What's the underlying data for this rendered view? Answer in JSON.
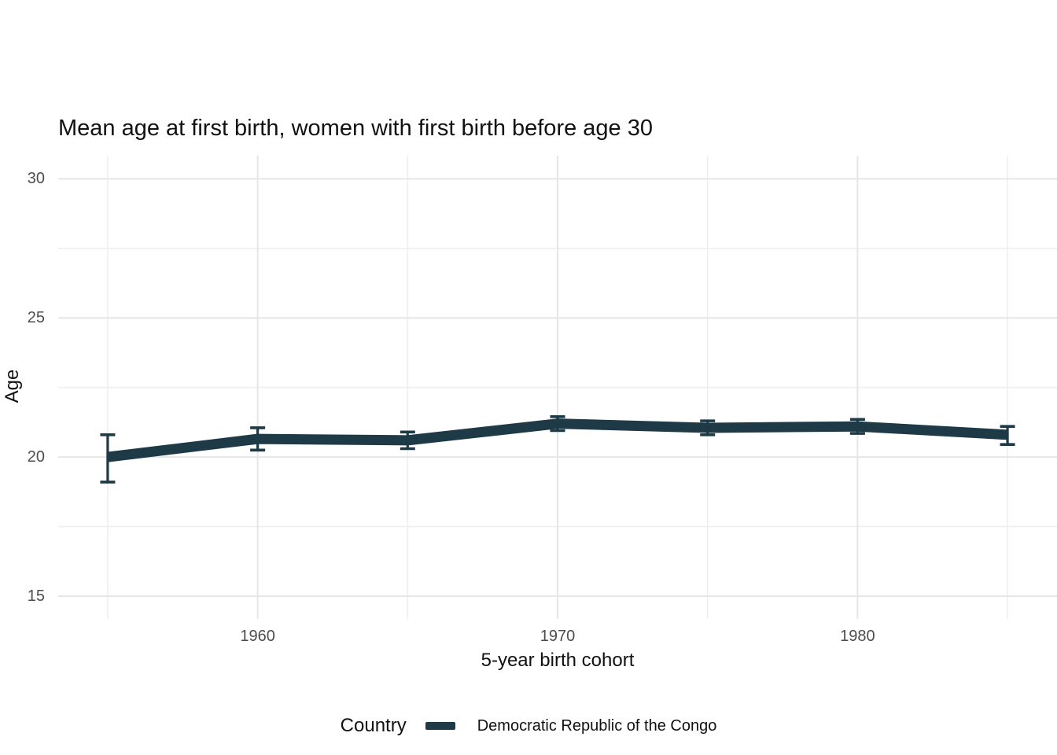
{
  "chart_data": {
    "type": "line",
    "title": "Mean age at first birth, women with first birth before age 30",
    "xlabel": "5-year birth cohort",
    "ylabel": "Age",
    "x": [
      1955,
      1960,
      1965,
      1970,
      1975,
      1980,
      1985
    ],
    "series": [
      {
        "name": "Democratic Republic of the Congo",
        "color": "#1d3a46",
        "values": [
          20.0,
          20.65,
          20.6,
          21.2,
          21.05,
          21.1,
          20.8
        ],
        "ci_low": [
          19.1,
          20.25,
          20.3,
          20.95,
          20.8,
          20.85,
          20.45
        ],
        "ci_high": [
          20.8,
          21.05,
          20.9,
          21.45,
          21.3,
          21.35,
          21.1
        ]
      }
    ],
    "error_bars": true,
    "xticks": [
      1960,
      1970,
      1980
    ],
    "x_minor_gridlines": [
      1955,
      1965,
      1975,
      1985
    ],
    "yticks": [
      15,
      20,
      25,
      30
    ],
    "y_minor_gridlines": [
      17.5,
      22.5,
      27.5
    ],
    "xlim": [
      1953.35,
      1986.65
    ],
    "ylim": [
      14.18,
      30.83
    ],
    "grid": "on",
    "legend_position": "bottom"
  },
  "legend": {
    "title": "Country",
    "items": [
      {
        "label": "Democratic Republic of the Congo",
        "color": "#1d3a46"
      }
    ]
  },
  "colors": {
    "series": "#1d3a46",
    "grid_major": "#e6e6e6",
    "grid_minor": "#efefef",
    "tick_label": "#4d4d4d",
    "text": "#111111",
    "background": "#ffffff"
  }
}
